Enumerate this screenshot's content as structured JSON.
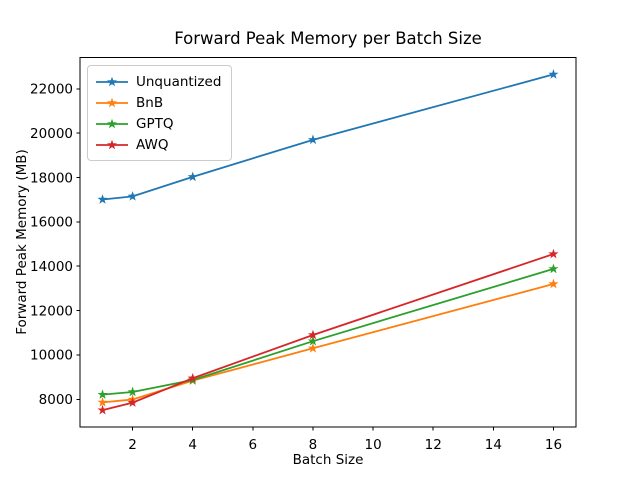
{
  "chart_data": {
    "type": "line",
    "title": "Forward Peak Memory per Batch Size",
    "xlabel": "Batch Size",
    "ylabel": "Forward Peak Memory (MB)",
    "x": [
      1,
      2,
      4,
      8,
      16
    ],
    "xticks": [
      2,
      4,
      6,
      8,
      10,
      12,
      14,
      16
    ],
    "yticks": [
      8000,
      10000,
      12000,
      14000,
      16000,
      18000,
      20000,
      22000
    ],
    "xlim": [
      0.25,
      16.75
    ],
    "ylim": [
      6742,
      23408
    ],
    "grid": false,
    "marker": "star",
    "legend_position": "upper-left",
    "series": [
      {
        "name": "Unquantized",
        "color": "#1f77b4",
        "values": [
          17010,
          17150,
          18030,
          19700,
          22650
        ]
      },
      {
        "name": "BnB",
        "color": "#ff7f0e",
        "values": [
          7860,
          7990,
          8840,
          10300,
          13200
        ]
      },
      {
        "name": "GPTQ",
        "color": "#2ca02c",
        "values": [
          8210,
          8330,
          8870,
          10620,
          13880
        ]
      },
      {
        "name": "AWQ",
        "color": "#d62728",
        "values": [
          7510,
          7850,
          8950,
          10900,
          14550
        ]
      }
    ]
  }
}
